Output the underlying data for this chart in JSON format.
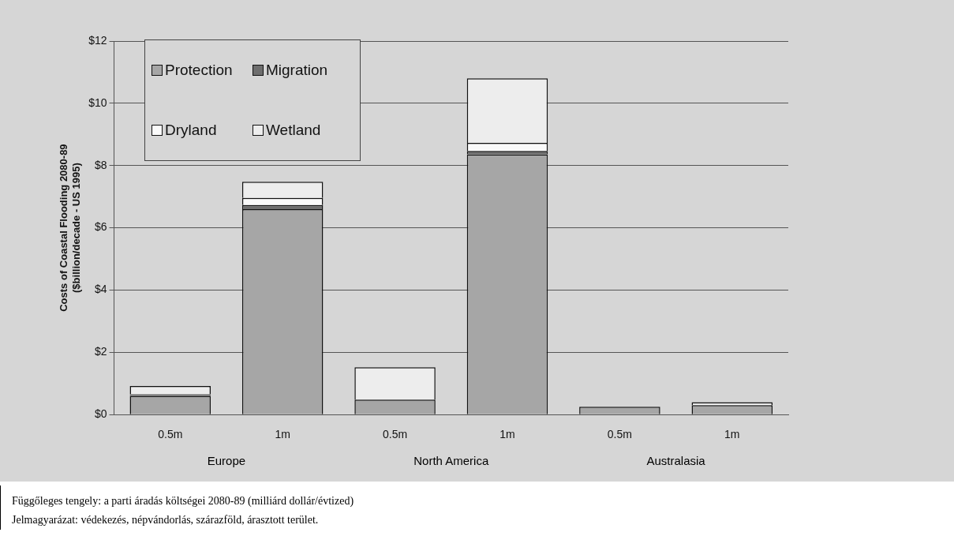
{
  "chart_data": {
    "type": "bar",
    "stacked": true,
    "ylabel": "Costs of Coastal Flooding 2080-89\n($billion/decade - US 1995)",
    "categories": [
      "0.5m",
      "1m",
      "0.5m",
      "1m",
      "0.5m",
      "1m"
    ],
    "series": [
      {
        "name": "Protection",
        "color": "#a6a6a6",
        "values": [
          0.6,
          6.6,
          0.48,
          8.36,
          0.25,
          0.3
        ]
      },
      {
        "name": "Migration",
        "color": "#6e6e6e",
        "values": [
          0.03,
          0.13,
          null,
          0.11,
          null,
          null
        ]
      },
      {
        "name": "Dryland",
        "color": "#fafafa",
        "values": [
          0.02,
          0.23,
          null,
          0.26,
          null,
          null
        ]
      },
      {
        "name": "Wetland",
        "color": "#ededed",
        "values": [
          0.27,
          0.52,
          1.04,
          2.07,
          null,
          0.1
        ]
      }
    ],
    "ylim": [
      0,
      12
    ],
    "yticks": [
      {
        "value": 0,
        "label": "$0"
      },
      {
        "value": 2,
        "label": "$2"
      },
      {
        "value": 4,
        "label": "$4"
      },
      {
        "value": 6,
        "label": "$6"
      },
      {
        "value": 8,
        "label": "$8"
      },
      {
        "value": 10,
        "label": "$10"
      },
      {
        "value": 12,
        "label": "$12"
      }
    ],
    "grid": "y",
    "legend": "top left",
    "annotations": [
      "Europe",
      "North America",
      "Australasia",
      "Függőleges tengely: a parti áradás költségei 2080-89 (milliárd dollár/évtized)",
      "Jelmagyarázat: védekezés, népvándorlás, szárazföld, árasztott terület."
    ]
  }
}
